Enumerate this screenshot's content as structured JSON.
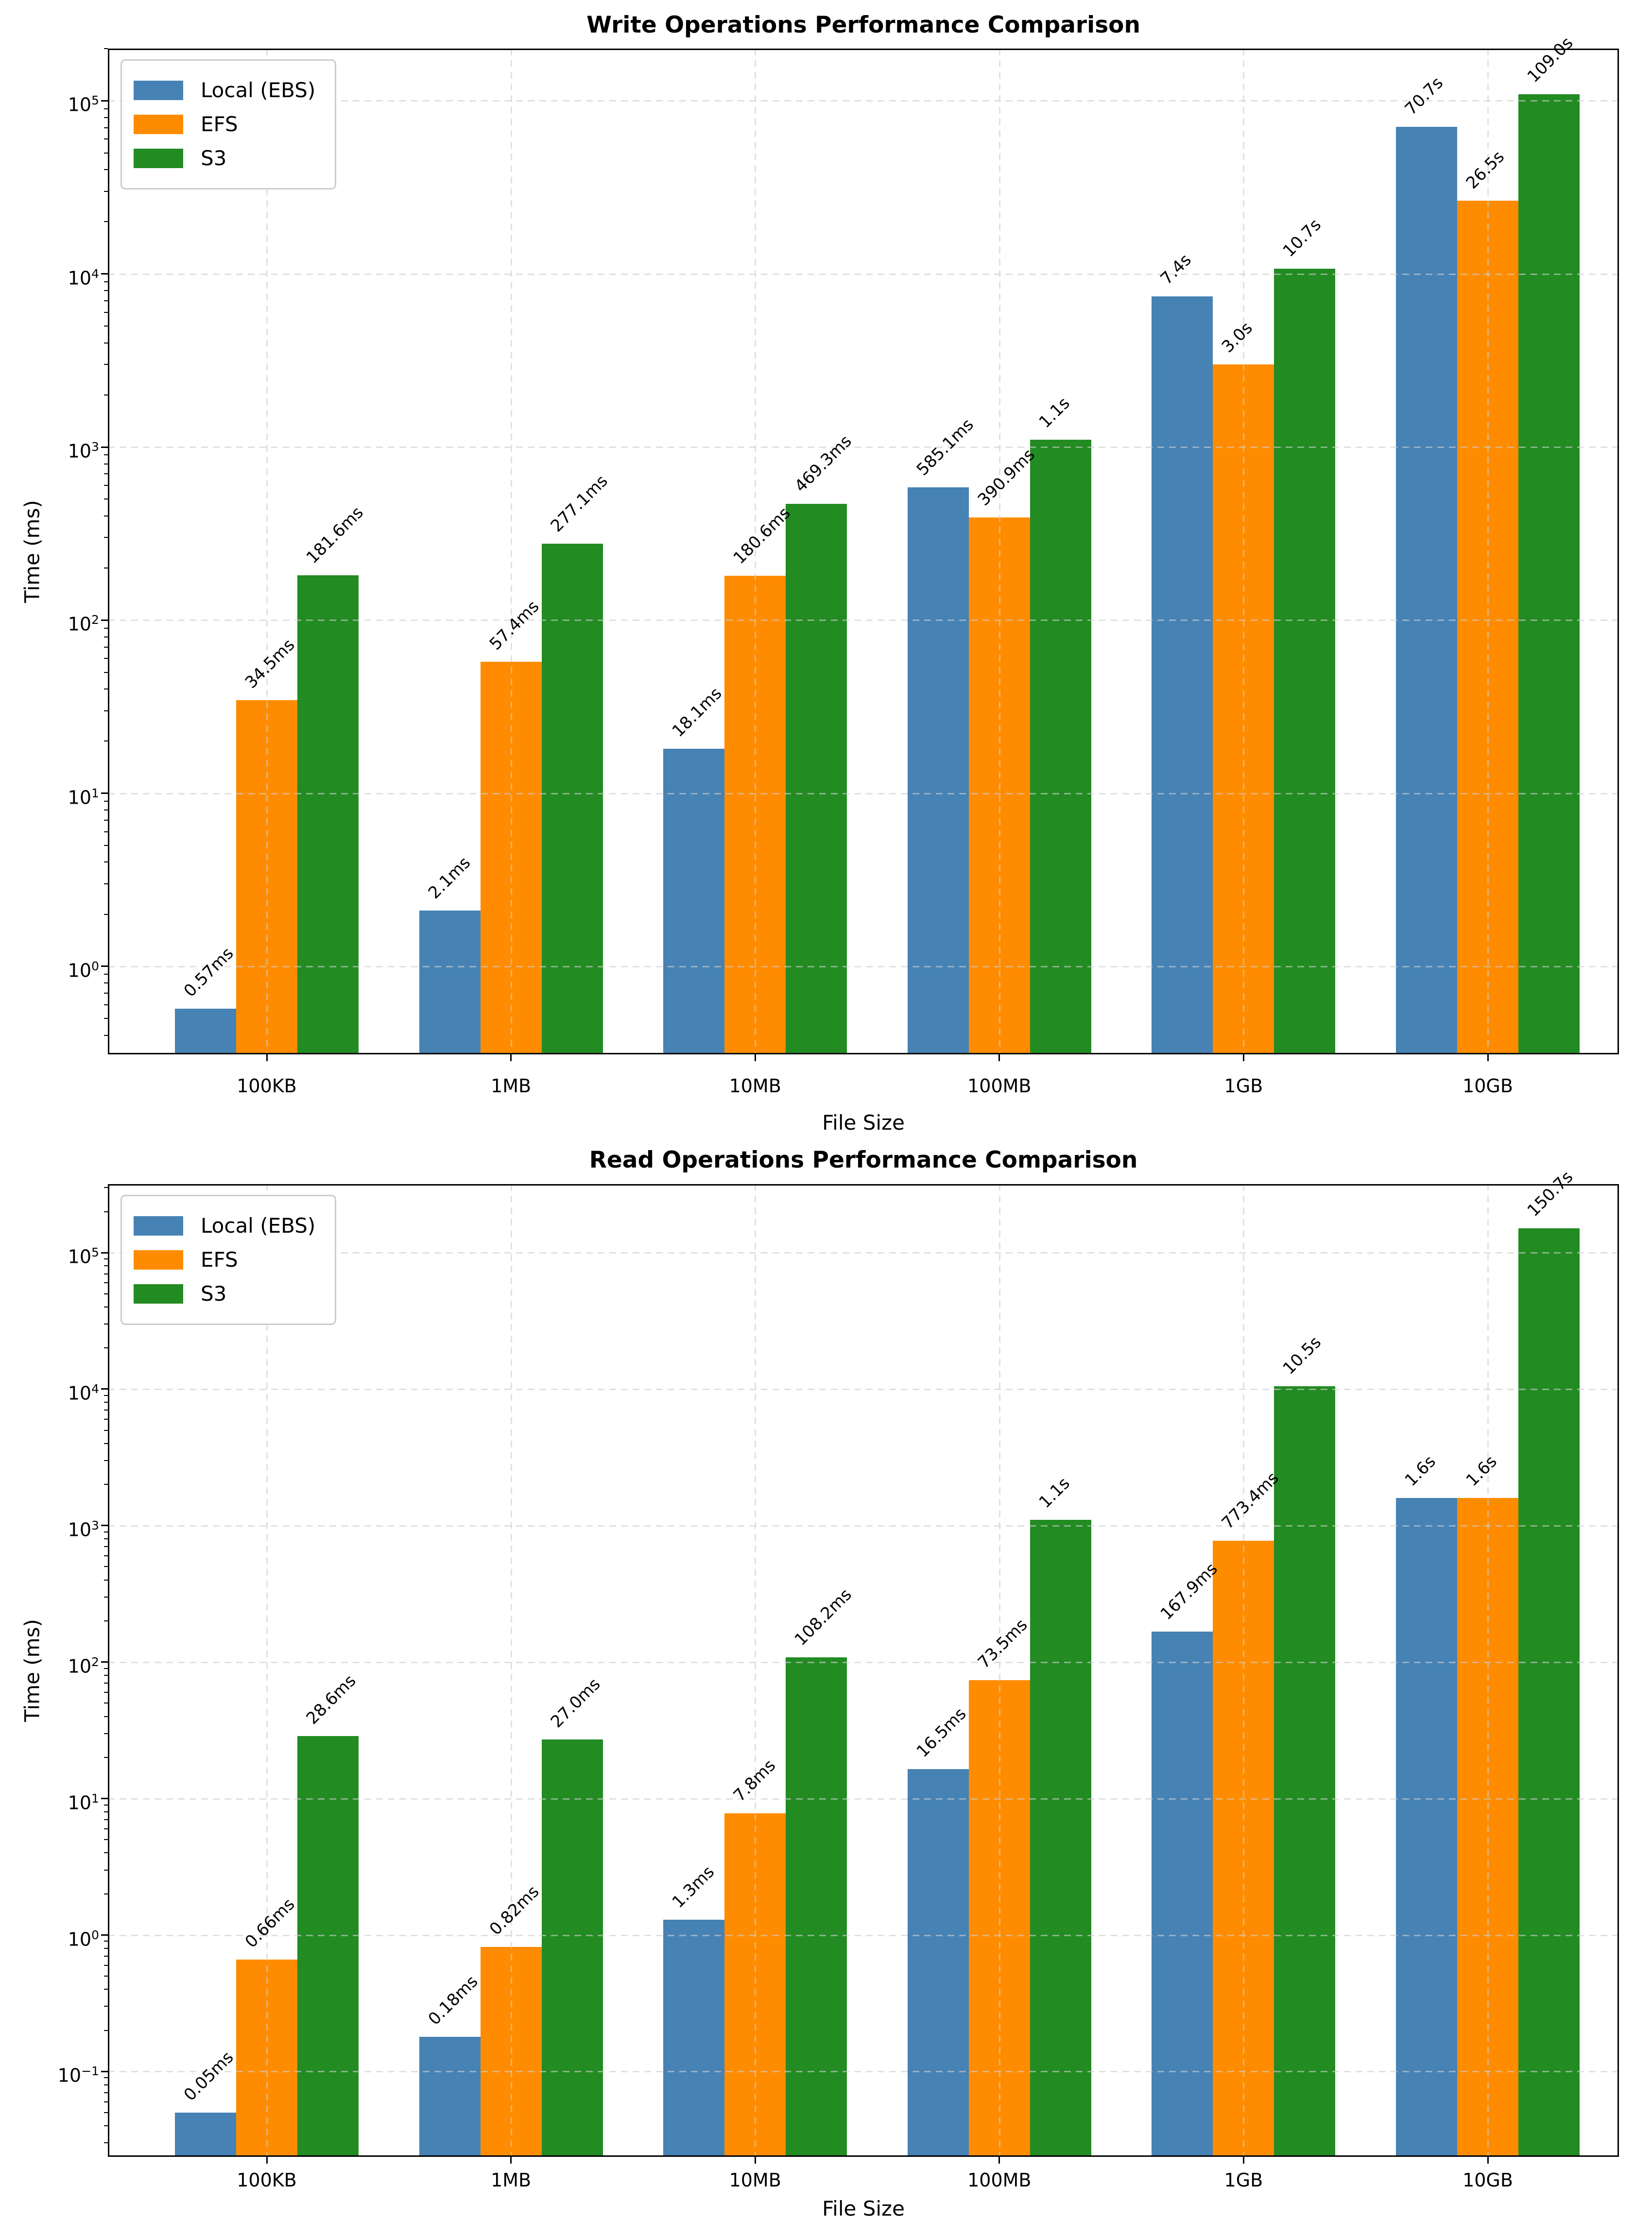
{
  "page": {
    "background": "#ffffff"
  },
  "colors": {
    "local_ebs": "#4682B4",
    "efs": "#FF8C00",
    "s3": "#228B22",
    "grid": "#cdcdcd",
    "axis": "#000000",
    "legend_border": "#cccccc"
  },
  "chart_data": [
    {
      "type": "bar",
      "title": "Write Operations Performance Comparison",
      "xlabel": "File Size",
      "ylabel": "Time (ms)",
      "yscale": "log",
      "grid": true,
      "legend_position": "upper left",
      "categories": [
        "100KB",
        "1MB",
        "10MB",
        "100MB",
        "1GB",
        "10GB"
      ],
      "ytick_exponents": [
        0,
        1,
        2,
        3,
        4,
        5
      ],
      "gridline_decades": [
        0,
        1,
        2,
        3,
        4,
        5
      ],
      "ylim_log10": [
        -0.5082,
        5.3015
      ],
      "series": [
        {
          "name": "Local (EBS)",
          "color_key": "local_ebs",
          "values_ms": [
            0.57,
            2.1,
            18.1,
            585.1,
            7400,
            70700
          ],
          "labels": [
            "0.57ms",
            "2.1ms",
            "18.1ms",
            "585.1ms",
            "7.4s",
            "70.7s"
          ]
        },
        {
          "name": "EFS",
          "color_key": "efs",
          "values_ms": [
            34.5,
            57.4,
            180.6,
            390.9,
            3000,
            26500
          ],
          "labels": [
            "34.5ms",
            "57.4ms",
            "180.6ms",
            "390.9ms",
            "3.0s",
            "26.5s"
          ]
        },
        {
          "name": "S3",
          "color_key": "s3",
          "values_ms": [
            181.6,
            277.1,
            469.3,
            1100,
            10700,
            109000
          ],
          "labels": [
            "181.6ms",
            "277.1ms",
            "469.3ms",
            "1.1s",
            "10.7s",
            "109.0s"
          ]
        }
      ]
    },
    {
      "type": "bar",
      "title": "Read Operations Performance Comparison",
      "xlabel": "File Size",
      "ylabel": "Time (ms)",
      "yscale": "log",
      "grid": true,
      "legend_position": "upper left",
      "categories": [
        "100KB",
        "1MB",
        "10MB",
        "100MB",
        "1GB",
        "10GB"
      ],
      "ytick_exponents": [
        -1,
        0,
        1,
        2,
        3,
        4,
        5
      ],
      "gridline_decades": [
        -1,
        0,
        1,
        2,
        3,
        4,
        5
      ],
      "ylim_log10": [
        -1.625,
        5.5022
      ],
      "series": [
        {
          "name": "Local (EBS)",
          "color_key": "local_ebs",
          "values_ms": [
            0.05,
            0.18,
            1.3,
            16.5,
            167.9,
            1600
          ],
          "labels": [
            "0.05ms",
            "0.18ms",
            "1.3ms",
            "16.5ms",
            "167.9ms",
            "1.6s"
          ]
        },
        {
          "name": "EFS",
          "color_key": "efs",
          "values_ms": [
            0.66,
            0.82,
            7.8,
            73.5,
            773.4,
            1600
          ],
          "labels": [
            "0.66ms",
            "0.82ms",
            "7.8ms",
            "73.5ms",
            "773.4ms",
            "1.6s"
          ]
        },
        {
          "name": "S3",
          "color_key": "s3",
          "values_ms": [
            28.6,
            27.0,
            108.2,
            1100,
            10500,
            150700
          ],
          "labels": [
            "28.6ms",
            "27.0ms",
            "108.2ms",
            "1.1s",
            "10.5s",
            "150.7s"
          ]
        }
      ]
    }
  ]
}
